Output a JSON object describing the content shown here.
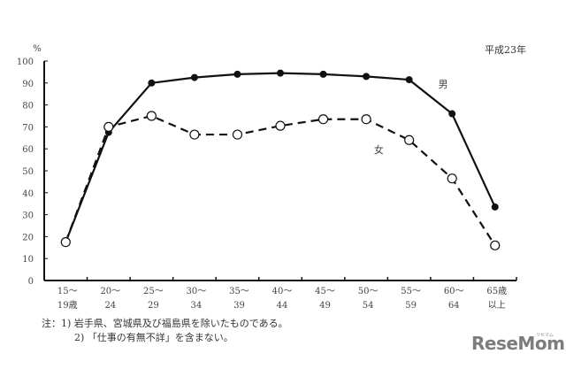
{
  "chart_data": {
    "type": "line",
    "title": "",
    "subtitle": "平成23年",
    "ylabel": "%",
    "xlabel": "",
    "ylim": [
      0,
      100
    ],
    "yticks": [
      0,
      10,
      20,
      30,
      40,
      50,
      60,
      70,
      80,
      90,
      100
    ],
    "grid": false,
    "categories": [
      [
        "15～",
        "19歳"
      ],
      [
        "20～",
        "24"
      ],
      [
        "25～",
        "29"
      ],
      [
        "30～",
        "34"
      ],
      [
        "35～",
        "39"
      ],
      [
        "40～",
        "44"
      ],
      [
        "45～",
        "49"
      ],
      [
        "50～",
        "54"
      ],
      [
        "55～",
        "59"
      ],
      [
        "60～",
        "64"
      ],
      [
        "65歳",
        "以上"
      ]
    ],
    "series": [
      {
        "name": "男",
        "style": "solid",
        "marker": "filled-circle",
        "values": [
          17.5,
          67.5,
          90.0,
          92.5,
          94.0,
          94.5,
          94.0,
          93.0,
          91.5,
          76.0,
          33.5
        ]
      },
      {
        "name": "女",
        "style": "dashed",
        "marker": "open-circle",
        "values": [
          17.5,
          70.0,
          75.0,
          66.5,
          66.5,
          70.5,
          73.5,
          73.5,
          64.0,
          46.5,
          16.0
        ]
      }
    ],
    "series_labels": [
      {
        "text": "男",
        "x_index": 9,
        "y": 88
      },
      {
        "text": "女",
        "x_index": 7.5,
        "y": 58
      }
    ]
  },
  "notes": {
    "line1": "注：1) 岩手県、宮城県及び福島県を除いたものである。",
    "line2": "2) 「仕事の有無不詳」を含まない。"
  },
  "watermark": {
    "text": "ReseMom",
    "sub": "リセマム"
  }
}
